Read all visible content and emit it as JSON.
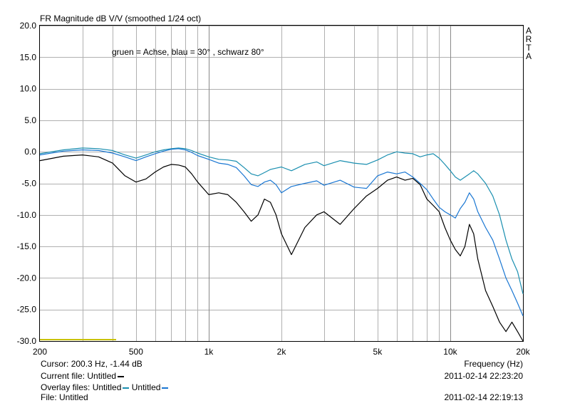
{
  "chart_data": {
    "type": "line",
    "title": "FR Magnitude dB V/V (smoothed 1/24 oct)",
    "annotation": "gruen = Achse, blau = 30° , schwarz 80°",
    "side_label": "ARTA",
    "xlabel": "Frequency (Hz)",
    "x_scale": "log",
    "xlim": [
      200,
      20000
    ],
    "ylim": [
      -30,
      20
    ],
    "x_ticks": [
      200,
      500,
      1000,
      2000,
      5000,
      10000,
      20000
    ],
    "x_tick_labels": [
      "200",
      "500",
      "1k",
      "2k",
      "5k",
      "10k",
      "20k"
    ],
    "y_ticks": [
      20,
      15,
      10,
      5,
      0,
      -5,
      -10,
      -15,
      -20,
      -25,
      -30
    ],
    "y_tick_labels": [
      "20.0",
      "15.0",
      "10.0",
      "5.0",
      "0.0",
      "-5.0",
      "-10.0",
      "-15.0",
      "-20.0",
      "-25.0",
      "-30.0"
    ],
    "grid": true,
    "series": [
      {
        "color": "#1a8fb0",
        "x": [
          200,
          250,
          300,
          350,
          400,
          450,
          500,
          550,
          600,
          650,
          700,
          750,
          800,
          850,
          900,
          1000,
          1100,
          1200,
          1300,
          1400,
          1500,
          1600,
          1700,
          1800,
          1900,
          2000,
          2200,
          2500,
          2800,
          3000,
          3500,
          4000,
          4500,
          5000,
          5500,
          6000,
          6500,
          7000,
          7500,
          8000,
          8500,
          9000,
          9500,
          10000,
          10500,
          11000,
          11500,
          12000,
          12500,
          13000,
          14000,
          15000,
          16000,
          17000,
          18000,
          19000,
          20000
        ],
        "values": [
          -0.3,
          0.3,
          0.6,
          0.5,
          0.2,
          -0.5,
          -1.0,
          -0.5,
          0,
          0.3,
          0.5,
          0.6,
          0.5,
          0.2,
          -0.2,
          -0.8,
          -1.2,
          -1.3,
          -1.5,
          -2.5,
          -3.5,
          -3.8,
          -3.3,
          -2.8,
          -2.6,
          -2.4,
          -3.0,
          -2.0,
          -1.6,
          -2.2,
          -1.4,
          -1.8,
          -2.0,
          -1.3,
          -0.5,
          0,
          -0.2,
          -0.3,
          -0.8,
          -0.5,
          -0.3,
          -1.0,
          -2.0,
          -3.0,
          -4.0,
          -4.5,
          -4.0,
          -3.5,
          -3.0,
          -3.5,
          -5.0,
          -7.0,
          -10.0,
          -14.0,
          -17.0,
          -19.0,
          -22.5
        ]
      },
      {
        "color": "#1976d2",
        "x": [
          200,
          250,
          300,
          350,
          400,
          450,
          500,
          550,
          600,
          650,
          700,
          750,
          800,
          850,
          900,
          1000,
          1100,
          1200,
          1300,
          1400,
          1500,
          1600,
          1700,
          1800,
          1900,
          2000,
          2200,
          2500,
          2800,
          3000,
          3500,
          4000,
          4500,
          5000,
          5500,
          6000,
          6500,
          7000,
          7500,
          8000,
          8500,
          9000,
          9500,
          10000,
          10500,
          11000,
          11500,
          12000,
          12500,
          13000,
          14000,
          15000,
          16000,
          17000,
          18000,
          19000,
          20000
        ],
        "values": [
          -0.5,
          0.1,
          0.3,
          0.2,
          -0.2,
          -0.8,
          -1.4,
          -0.8,
          -0.3,
          0.1,
          0.4,
          0.5,
          0.3,
          -0.1,
          -0.6,
          -1.2,
          -1.8,
          -2.0,
          -2.5,
          -3.8,
          -5.2,
          -5.5,
          -4.8,
          -4.5,
          -5.2,
          -6.5,
          -5.5,
          -5.0,
          -4.6,
          -5.3,
          -4.5,
          -5.6,
          -5.8,
          -3.8,
          -3.2,
          -3.5,
          -3.2,
          -4.0,
          -5.0,
          -6.0,
          -7.5,
          -8.8,
          -9.5,
          -10.0,
          -10.5,
          -9.0,
          -8.0,
          -6.5,
          -7.5,
          -9.5,
          -12.0,
          -14.0,
          -17.0,
          -20.0,
          -22.0,
          -24.0,
          -26.0
        ]
      },
      {
        "color": "#000000",
        "x": [
          200,
          250,
          300,
          350,
          400,
          450,
          500,
          550,
          600,
          650,
          700,
          750,
          800,
          850,
          900,
          1000,
          1100,
          1200,
          1300,
          1400,
          1500,
          1600,
          1700,
          1800,
          1900,
          2000,
          2200,
          2500,
          2800,
          3000,
          3500,
          4000,
          4500,
          5000,
          5500,
          6000,
          6500,
          7000,
          7500,
          8000,
          8500,
          9000,
          9500,
          10000,
          10500,
          11000,
          11500,
          12000,
          12500,
          13000,
          14000,
          15000,
          16000,
          17000,
          18000,
          19000,
          20000
        ],
        "values": [
          -1.4,
          -0.7,
          -0.5,
          -0.8,
          -1.8,
          -3.8,
          -4.8,
          -4.3,
          -3.2,
          -2.4,
          -2.0,
          -2.1,
          -2.4,
          -3.5,
          -4.8,
          -6.8,
          -6.5,
          -6.8,
          -8.0,
          -9.5,
          -11.0,
          -10.0,
          -7.5,
          -8.0,
          -10.0,
          -13.0,
          -16.3,
          -12.0,
          -10.0,
          -9.5,
          -11.5,
          -9.0,
          -7.0,
          -5.8,
          -4.5,
          -4.0,
          -4.5,
          -4.2,
          -5.2,
          -7.5,
          -8.5,
          -9.5,
          -12.0,
          -14.0,
          -15.5,
          -16.5,
          -15.0,
          -11.5,
          -13.0,
          -17.0,
          -22.0,
          -24.5,
          -27.0,
          -28.5,
          -27.0,
          -28.5,
          -30.0
        ]
      }
    ],
    "marker_color": "#c9c200"
  },
  "footer": {
    "cursor_label": "Cursor:",
    "cursor_value": "200.3 Hz, -1.44 dB",
    "current_label": "Current file:",
    "current_name": "Untitled",
    "current_color": "#000000",
    "overlay_label": "Overlay files:",
    "overlays": [
      {
        "name": "Untitled",
        "color": "#1a8fb0"
      },
      {
        "name": "Untitled",
        "color": "#1976d2"
      }
    ],
    "file_label": "File:",
    "file_name": "Untitled",
    "timestamp": "2011-02-14  22:23:20",
    "timestamp2": "2011-02-14  22:19:13"
  }
}
